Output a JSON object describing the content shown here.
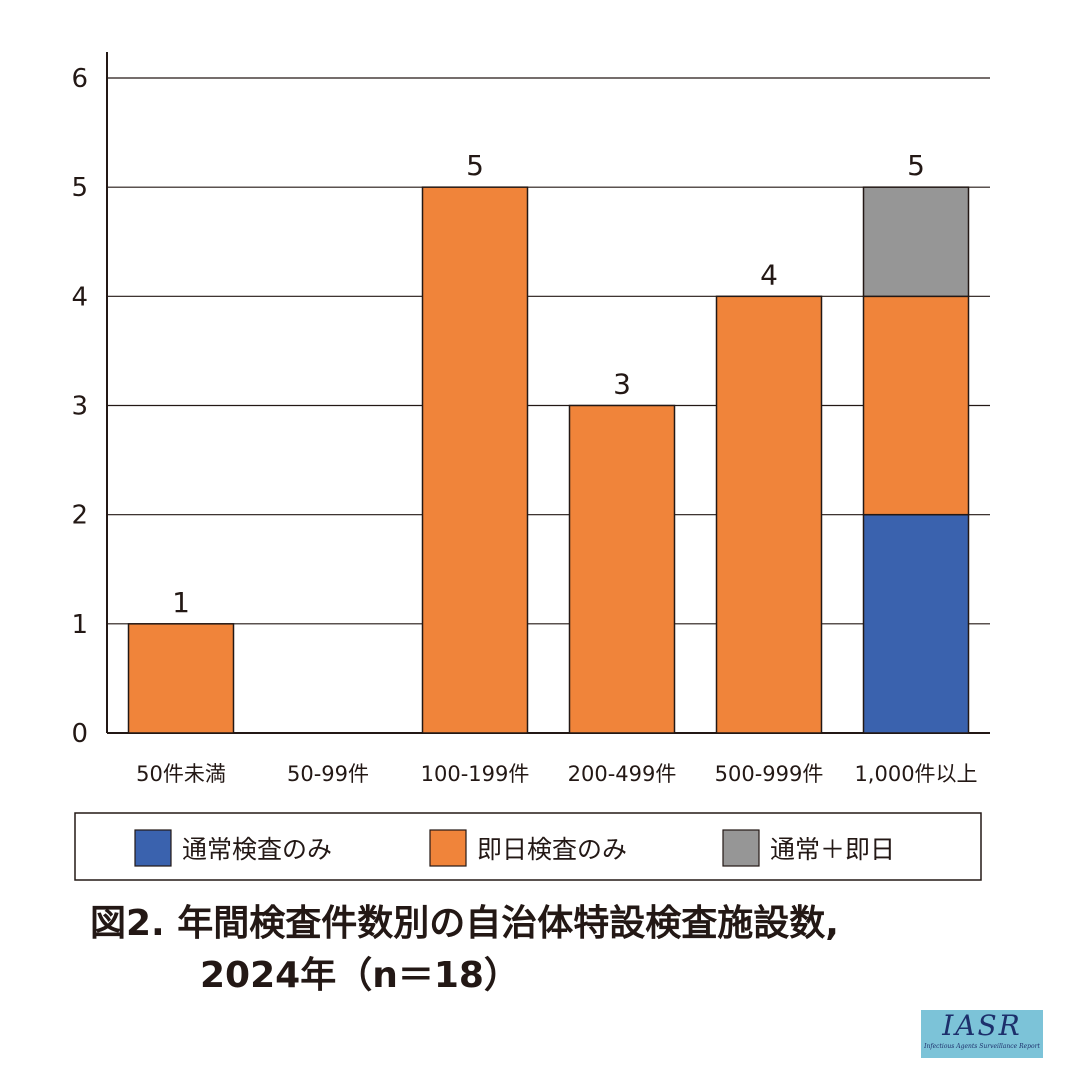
{
  "chart_data": {
    "type": "bar",
    "stacked": true,
    "title": "図2. 年間検査件数別の自治体特設検査施設数,",
    "title_line2": "2024年（n＝18）",
    "categories": [
      "50件未満",
      "50-99件",
      "100-199件",
      "200-499件",
      "500-999件",
      "1,000件以上"
    ],
    "series": [
      {
        "name": "通常検査のみ",
        "color": "#3a62ae",
        "values": [
          0,
          0,
          0,
          0,
          0,
          2
        ]
      },
      {
        "name": "即日検査のみ",
        "color": "#f0843a",
        "values": [
          1,
          0,
          5,
          3,
          4,
          2
        ]
      },
      {
        "name": "通常＋即日",
        "color": "#969696",
        "values": [
          0,
          0,
          0,
          0,
          0,
          1
        ]
      }
    ],
    "totals_labels": [
      "1",
      "",
      "5",
      "3",
      "4",
      "5"
    ],
    "ylim": [
      0,
      6
    ],
    "yticks": [
      0,
      1,
      2,
      3,
      4,
      5,
      6
    ],
    "grid": true,
    "legend_position": "bottom",
    "xlabel": "",
    "ylabel": ""
  },
  "logo": {
    "main": "IASR",
    "sub": "Infectious Agents Surveillance Report"
  }
}
